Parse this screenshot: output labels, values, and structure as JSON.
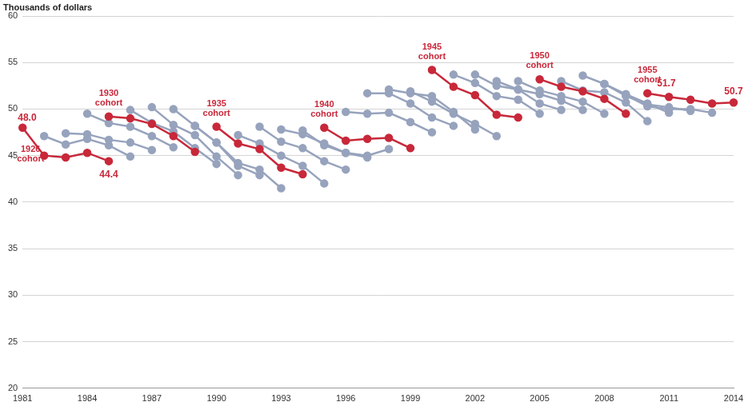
{
  "chart_data": {
    "type": "line",
    "ylabel": "Thousands of dollars",
    "xlim": [
      1981,
      2014
    ],
    "xticks": [
      1981,
      1984,
      1987,
      1990,
      1993,
      1996,
      1999,
      2002,
      2005,
      2008,
      2011,
      2014
    ],
    "ylim": [
      20,
      60
    ],
    "yticks": [
      20,
      25,
      30,
      35,
      40,
      45,
      50,
      55,
      60
    ],
    "grid": true,
    "series": [
      {
        "name": "1926 cohort",
        "color": "#c8283a",
        "x": [
          1981,
          1982,
          1983,
          1984,
          1985
        ],
        "values": [
          48.0,
          45.0,
          44.8,
          45.3,
          44.4
        ],
        "value_labels": [
          "48.0",
          null,
          null,
          null,
          "44.4"
        ]
      },
      {
        "color": "#97a3bd",
        "x": [
          1982,
          1983,
          1984,
          1985,
          1986
        ],
        "values": [
          47.1,
          46.2,
          46.8,
          46.1,
          44.9
        ]
      },
      {
        "color": "#97a3bd",
        "x": [
          1983,
          1984,
          1985,
          1986,
          1987
        ],
        "values": [
          47.4,
          47.3,
          46.7,
          46.4,
          45.6
        ]
      },
      {
        "color": "#97a3bd",
        "x": [
          1984,
          1985,
          1986,
          1987,
          1988
        ],
        "values": [
          49.5,
          48.5,
          48.1,
          47.1,
          45.9
        ]
      },
      {
        "name": "1930 cohort",
        "color": "#c8283a",
        "x": [
          1985,
          1986,
          1987,
          1988,
          1989
        ],
        "values": [
          49.2,
          49.0,
          48.4,
          47.1,
          45.4
        ]
      },
      {
        "color": "#97a3bd",
        "x": [
          1986,
          1987,
          1988,
          1989,
          1990
        ],
        "values": [
          49.9,
          48.5,
          47.6,
          45.8,
          44.1
        ]
      },
      {
        "color": "#97a3bd",
        "x": [
          1987,
          1988,
          1989,
          1990,
          1991
        ],
        "values": [
          50.2,
          48.3,
          47.2,
          44.9,
          42.9
        ]
      },
      {
        "color": "#97a3bd",
        "x": [
          1988,
          1989,
          1990,
          1991,
          1992
        ],
        "values": [
          50.0,
          48.2,
          46.4,
          43.9,
          42.9
        ]
      },
      {
        "color": "#97a3bd",
        "x": [
          1989,
          1990,
          1991,
          1992,
          1993
        ],
        "values": [
          48.2,
          46.4,
          44.2,
          43.5,
          41.5
        ]
      },
      {
        "name": "1935 cohort",
        "color": "#c8283a",
        "x": [
          1990,
          1991,
          1992,
          1993,
          1994
        ],
        "values": [
          48.1,
          46.3,
          45.7,
          43.7,
          43.0
        ]
      },
      {
        "color": "#97a3bd",
        "x": [
          1991,
          1992,
          1993,
          1994,
          1995
        ],
        "values": [
          47.2,
          46.3,
          45.0,
          43.9,
          42.0
        ]
      },
      {
        "color": "#97a3bd",
        "x": [
          1992,
          1993,
          1994,
          1995,
          1996
        ],
        "values": [
          48.1,
          46.5,
          45.8,
          44.4,
          43.5
        ]
      },
      {
        "color": "#97a3bd",
        "x": [
          1993,
          1994,
          1995,
          1996,
          1997
        ],
        "values": [
          47.8,
          47.3,
          46.3,
          45.3,
          44.8
        ]
      },
      {
        "color": "#97a3bd",
        "x": [
          1994,
          1995,
          1996,
          1997,
          1998
        ],
        "values": [
          47.7,
          46.1,
          45.3,
          45.0,
          45.7
        ]
      },
      {
        "name": "1940 cohort",
        "color": "#c8283a",
        "x": [
          1995,
          1996,
          1997,
          1998,
          1999
        ],
        "values": [
          48.0,
          46.6,
          46.8,
          46.9,
          45.8
        ]
      },
      {
        "color": "#97a3bd",
        "x": [
          1996,
          1997,
          1998,
          1999,
          2000
        ],
        "values": [
          49.7,
          49.5,
          49.6,
          48.6,
          47.5
        ]
      },
      {
        "color": "#97a3bd",
        "x": [
          1997,
          1998,
          1999,
          2000,
          2001
        ],
        "values": [
          51.7,
          51.7,
          50.6,
          49.1,
          48.2
        ]
      },
      {
        "color": "#97a3bd",
        "x": [
          1998,
          1999,
          2000,
          2001,
          2002
        ],
        "values": [
          52.1,
          51.7,
          51.4,
          49.7,
          47.8
        ]
      },
      {
        "color": "#97a3bd",
        "x": [
          1999,
          2000,
          2001,
          2002,
          2003
        ],
        "values": [
          51.9,
          50.8,
          49.5,
          48.4,
          47.1
        ]
      },
      {
        "name": "1945 cohort",
        "color": "#c8283a",
        "x": [
          2000,
          2001,
          2002,
          2003,
          2004
        ],
        "values": [
          54.2,
          52.4,
          51.5,
          49.4,
          49.1
        ]
      },
      {
        "color": "#97a3bd",
        "x": [
          2001,
          2002,
          2003,
          2004,
          2005
        ],
        "values": [
          53.7,
          52.8,
          51.4,
          51.0,
          49.5
        ]
      },
      {
        "color": "#97a3bd",
        "x": [
          2002,
          2003,
          2004,
          2005,
          2006
        ],
        "values": [
          53.7,
          52.5,
          52.1,
          50.6,
          49.9
        ]
      },
      {
        "color": "#97a3bd",
        "x": [
          2003,
          2004,
          2005,
          2006,
          2007
        ],
        "values": [
          53.0,
          52.1,
          51.6,
          50.9,
          49.9
        ]
      },
      {
        "color": "#97a3bd",
        "x": [
          2004,
          2005,
          2006,
          2007,
          2008
        ],
        "values": [
          53.0,
          52.0,
          51.4,
          50.8,
          49.5
        ]
      },
      {
        "name": "1950 cohort",
        "color": "#c8283a",
        "x": [
          2005,
          2006,
          2007,
          2008,
          2009
        ],
        "values": [
          53.2,
          52.4,
          51.9,
          51.1,
          49.5
        ]
      },
      {
        "color": "#97a3bd",
        "x": [
          2006,
          2007,
          2008,
          2009,
          2010
        ],
        "values": [
          53.0,
          52.0,
          51.8,
          50.7,
          48.7
        ]
      },
      {
        "color": "#97a3bd",
        "x": [
          2007,
          2008,
          2009,
          2010,
          2011
        ],
        "values": [
          53.6,
          52.7,
          51.6,
          50.6,
          49.6
        ]
      },
      {
        "color": "#97a3bd",
        "x": [
          2008,
          2009,
          2010,
          2011,
          2012
        ],
        "values": [
          52.7,
          51.4,
          50.5,
          50.2,
          49.8
        ]
      },
      {
        "color": "#97a3bd",
        "x": [
          2009,
          2010,
          2011,
          2012,
          2013
        ],
        "values": [
          51.5,
          50.3,
          50.0,
          50.0,
          49.6
        ]
      },
      {
        "name": "1955 cohort",
        "color": "#c8283a",
        "x": [
          2010,
          2011,
          2012,
          2013,
          2014
        ],
        "values": [
          51.7,
          51.3,
          51.0,
          50.6,
          50.7
        ],
        "value_labels": [
          "51.7",
          null,
          null,
          null,
          "50.7"
        ]
      }
    ]
  }
}
